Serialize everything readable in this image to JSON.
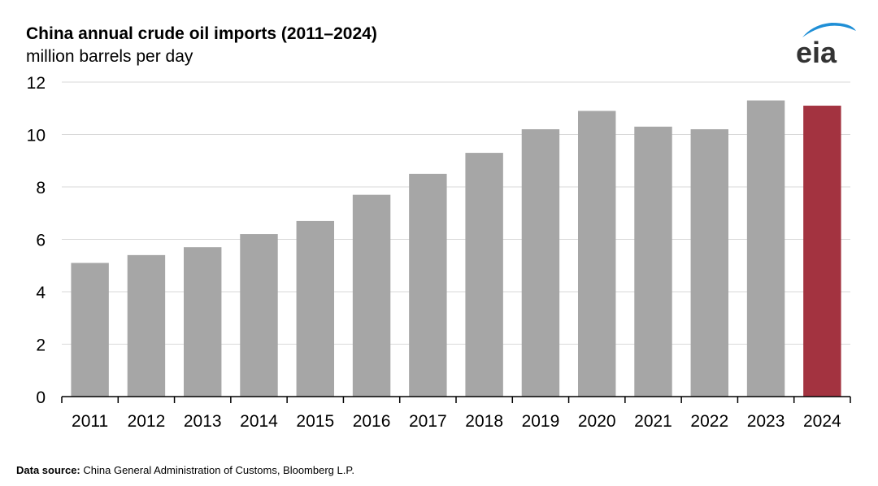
{
  "chart_data": {
    "type": "bar",
    "title": "China annual crude oil imports (2011–2024)",
    "subtitle": "million barrels per day",
    "xlabel": "",
    "ylabel": "million barrels per day",
    "ylim": [
      0,
      12
    ],
    "yticks": [
      "0",
      "2",
      "4",
      "6",
      "8",
      "10",
      "12"
    ],
    "grid": true,
    "categories": [
      "2011",
      "2012",
      "2013",
      "2014",
      "2015",
      "2016",
      "2017",
      "2018",
      "2019",
      "2020",
      "2021",
      "2022",
      "2023",
      "2024"
    ],
    "values": [
      5.1,
      5.4,
      5.7,
      6.2,
      6.7,
      7.7,
      8.5,
      9.3,
      10.2,
      10.9,
      10.3,
      10.2,
      11.3,
      11.1
    ],
    "colors": {
      "default": "#a6a6a6",
      "highlight": "#a33340",
      "grid": "#d9d9d9"
    },
    "highlight_index": 13
  },
  "source": {
    "label": "Data source:",
    "text": "China General Administration of Customs, Bloomberg L.P."
  },
  "logo": {
    "text": "eia",
    "arc_color": "#1f8fd6"
  }
}
